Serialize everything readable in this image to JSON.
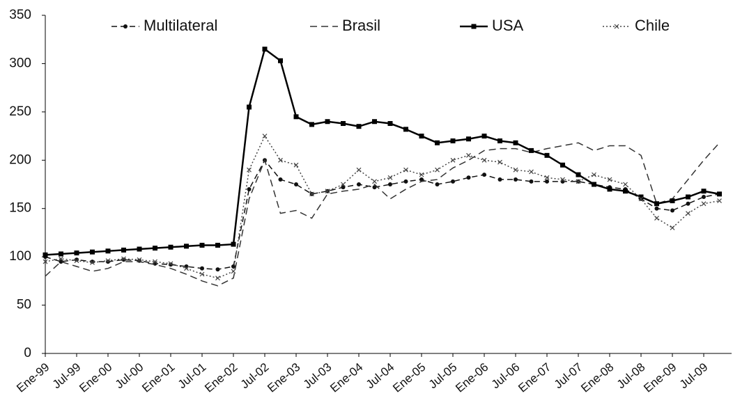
{
  "chart_data": {
    "type": "line",
    "categories": [
      "Ene-99",
      null,
      "Jul-99",
      null,
      "Ene-00",
      null,
      "Jul-00",
      null,
      "Ene-01",
      null,
      "Jul-01",
      null,
      "Ene-02",
      null,
      "Jul-02",
      null,
      "Ene-03",
      null,
      "Jul-03",
      null,
      "Ene-04",
      null,
      "Jul-04",
      null,
      "Ene-05",
      null,
      "Jul-05",
      null,
      "Ene-06",
      null,
      "Jul-06",
      null,
      "Ene-07",
      null,
      "Jul-07",
      null,
      "Ene-08",
      null,
      "Jul-08",
      null,
      "Ene-09",
      null,
      "Jul-09",
      null
    ],
    "series": [
      {
        "name": "Multilateral",
        "color": "#111111",
        "dash": "8 5",
        "marker": "circle",
        "values": [
          100,
          95,
          97,
          95,
          95,
          97,
          96,
          93,
          92,
          90,
          88,
          87,
          90,
          170,
          200,
          180,
          175,
          165,
          168,
          172,
          175,
          172,
          175,
          178,
          180,
          175,
          178,
          182,
          185,
          180,
          180,
          178,
          178,
          178,
          178,
          175,
          172,
          170,
          160,
          150,
          148,
          155,
          162,
          165
        ]
      },
      {
        "name": "Brasil",
        "color": "#333333",
        "dash": "10 6",
        "marker": "none",
        "values": [
          80,
          95,
          90,
          85,
          88,
          95,
          95,
          92,
          88,
          82,
          75,
          70,
          78,
          160,
          200,
          145,
          148,
          140,
          165,
          168,
          170,
          175,
          160,
          170,
          178,
          180,
          192,
          200,
          210,
          212,
          212,
          208,
          212,
          215,
          218,
          210,
          215,
          215,
          205,
          155,
          160,
          180,
          200,
          218
        ]
      },
      {
        "name": "USA",
        "color": "#000000",
        "dash": "none",
        "marker": "square",
        "values": [
          102,
          103,
          104,
          105,
          106,
          107,
          108,
          109,
          110,
          111,
          112,
          112,
          113,
          255,
          315,
          303,
          245,
          237,
          240,
          238,
          235,
          240,
          238,
          232,
          225,
          218,
          220,
          222,
          225,
          220,
          218,
          210,
          205,
          195,
          185,
          175,
          170,
          168,
          162,
          155,
          158,
          162,
          168,
          165
        ]
      },
      {
        "name": "Chile",
        "color": "#444444",
        "dash": "2 3",
        "marker": "x",
        "values": [
          95,
          98,
          96,
          94,
          96,
          98,
          97,
          95,
          93,
          88,
          82,
          78,
          85,
          190,
          225,
          200,
          195,
          165,
          168,
          175,
          190,
          178,
          182,
          190,
          185,
          190,
          200,
          205,
          200,
          198,
          190,
          188,
          182,
          180,
          178,
          185,
          180,
          175,
          160,
          140,
          130,
          145,
          155,
          158
        ]
      }
    ],
    "ylim": [
      0,
      350
    ],
    "yticks": [
      0,
      50,
      100,
      150,
      200,
      250,
      300,
      350
    ],
    "grid": false
  }
}
